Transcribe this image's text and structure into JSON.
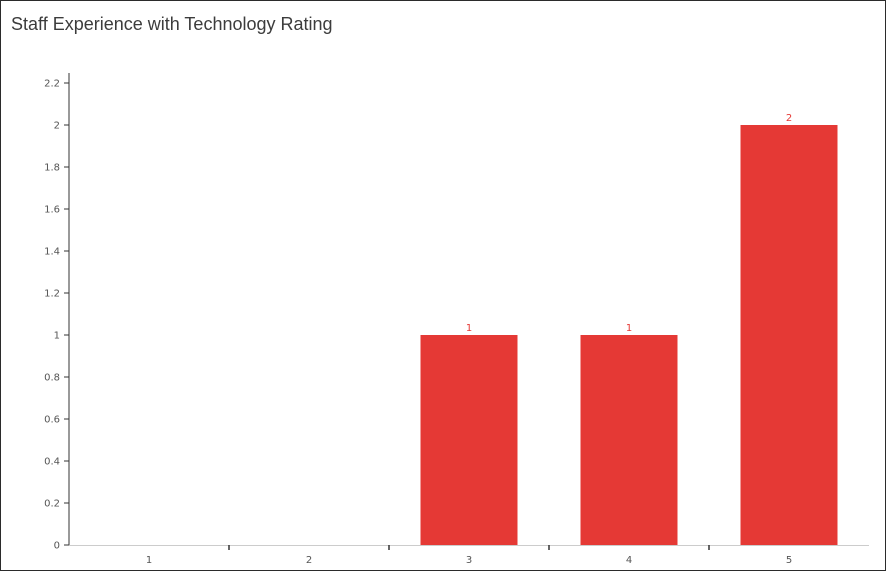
{
  "chart_data": {
    "type": "bar",
    "title": "Staff Experience with Technology Rating",
    "categories": [
      "1",
      "2",
      "3",
      "4",
      "5"
    ],
    "values": [
      0,
      0,
      1,
      1,
      2
    ],
    "data_labels": [
      "",
      "",
      "1",
      "1",
      "2"
    ],
    "yticks": [
      "0",
      "0.2",
      "0.4",
      "0.6",
      "0.8",
      "1",
      "1.2",
      "1.4",
      "1.6",
      "1.8",
      "2",
      "2.2"
    ],
    "ylim": [
      0,
      2.3
    ],
    "xlabel": "",
    "ylabel": "",
    "grid": false,
    "colors": {
      "bar": "#e53935",
      "label": "#e53935",
      "axis": "#333333"
    }
  }
}
